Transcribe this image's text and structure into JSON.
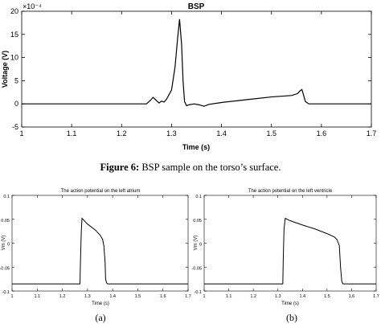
{
  "chart_data": [
    {
      "id": "bsp",
      "type": "line",
      "title": "BSP",
      "xlabel": "Time (s)",
      "ylabel": "Voltage (V)",
      "y_exponent_label": "×10⁻⁴",
      "xlim": [
        1,
        1.7
      ],
      "ylim": [
        -5,
        20
      ],
      "xticks": [
        1,
        1.1,
        1.2,
        1.3,
        1.4,
        1.5,
        1.6,
        1.7
      ],
      "xtick_labels": [
        "1",
        "1.1",
        "1.2",
        "1.3",
        "1.4",
        "1.5",
        "1.6",
        "1.7"
      ],
      "yticks": [
        -5,
        0,
        5,
        10,
        15,
        20
      ],
      "ytick_labels": [
        "-5",
        "0",
        "5",
        "10",
        "15",
        "20"
      ],
      "series": [
        {
          "x": [
            1,
            1.25,
            1.258,
            1.263,
            1.27,
            1.275,
            1.28,
            1.285,
            1.29,
            1.3,
            1.307,
            1.312,
            1.316,
            1.32,
            1.323,
            1.326,
            1.33,
            1.335,
            1.345,
            1.355,
            1.365,
            1.375,
            1.4,
            1.45,
            1.5,
            1.54,
            1.552,
            1.557,
            1.561,
            1.564,
            1.568,
            1.575,
            1.7
          ],
          "y": [
            0,
            0,
            0.8,
            1.4,
            0.7,
            0.2,
            0.6,
            0.4,
            1.0,
            3.0,
            8.0,
            14.0,
            18.3,
            13.0,
            5.0,
            0.5,
            -0.4,
            -0.2,
            0,
            -0.2,
            -0.5,
            -0.1,
            0.3,
            0.9,
            1.5,
            1.8,
            2.2,
            2.8,
            3.1,
            2.0,
            0.5,
            0,
            0
          ]
        }
      ]
    },
    {
      "id": "atrium",
      "type": "line",
      "title": "The action potential on the left atrium",
      "xlabel": "Time (s)",
      "ylabel": "Vm (V)",
      "xlim": [
        1,
        1.7
      ],
      "ylim": [
        -0.1,
        0.1
      ],
      "xticks": [
        1,
        1.1,
        1.2,
        1.3,
        1.4,
        1.5,
        1.6,
        1.7
      ],
      "xtick_labels": [
        "1",
        "1.1",
        "1.2",
        "1.3",
        "1.4",
        "1.5",
        "1.6",
        "1.7"
      ],
      "yticks": [
        -0.1,
        -0.05,
        0,
        0.05,
        0.1
      ],
      "ytick_labels": [
        "-0.1",
        "-0.05",
        "0",
        "0.05",
        "0.1"
      ],
      "series": [
        {
          "x": [
            1,
            1.27,
            1.272,
            1.275,
            1.278,
            1.3,
            1.33,
            1.35,
            1.36,
            1.365,
            1.37,
            1.372,
            1.376,
            1.38,
            1.7
          ],
          "y": [
            -0.085,
            -0.085,
            -0.04,
            0.02,
            0.052,
            0.04,
            0.028,
            0.017,
            0.008,
            -0.005,
            -0.04,
            -0.075,
            -0.083,
            -0.085,
            -0.085
          ]
        }
      ]
    },
    {
      "id": "ventricle",
      "type": "line",
      "title": "The action potential on the left ventricle",
      "xlabel": "Time (s)",
      "ylabel": "Vm (V)",
      "xlim": [
        1,
        1.7
      ],
      "ylim": [
        -0.1,
        0.1
      ],
      "xticks": [
        1,
        1.1,
        1.2,
        1.3,
        1.4,
        1.5,
        1.6,
        1.7
      ],
      "xtick_labels": [
        "1",
        "1.1",
        "1.2",
        "1.3",
        "1.4",
        "1.5",
        "1.6",
        "1.7"
      ],
      "yticks": [
        -0.1,
        -0.05,
        0,
        0.05,
        0.1
      ],
      "ytick_labels": [
        "-0.1",
        "-0.05",
        "0",
        "0.05",
        "0.1"
      ],
      "series": [
        {
          "x": [
            1,
            1.32,
            1.322,
            1.325,
            1.33,
            1.35,
            1.4,
            1.45,
            1.5,
            1.53,
            1.54,
            1.55,
            1.555,
            1.56,
            1.565,
            1.7
          ],
          "y": [
            -0.085,
            -0.085,
            -0.03,
            0.03,
            0.052,
            0.047,
            0.038,
            0.03,
            0.02,
            0.013,
            0.008,
            -0.005,
            -0.05,
            -0.08,
            -0.085,
            -0.085
          ]
        }
      ]
    }
  ],
  "captions": {
    "figure6_label": "Figure 6:",
    "figure6_text": " BSP sample on the torso’s surface.",
    "sub_a": "(a)",
    "sub_b": "(b)"
  }
}
